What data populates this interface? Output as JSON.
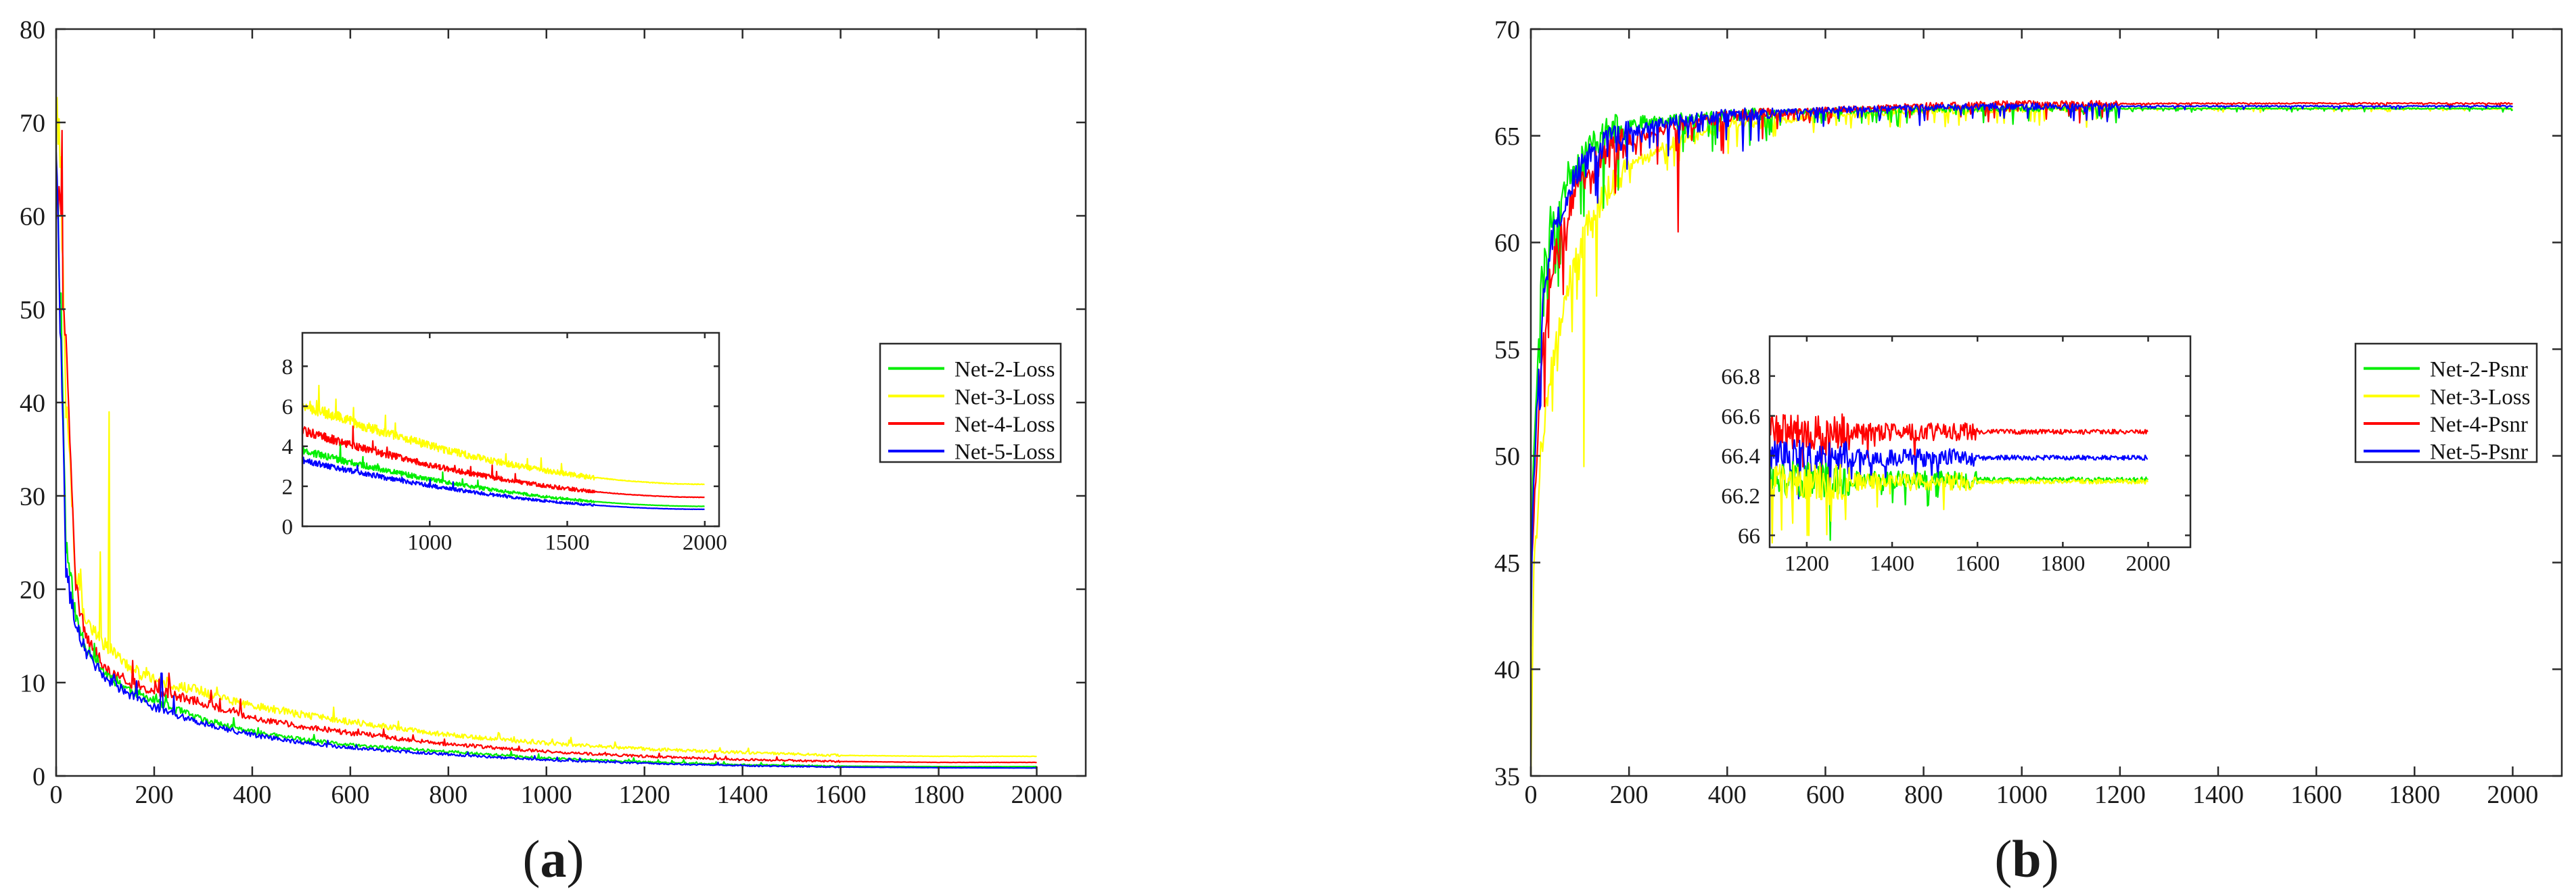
{
  "figure": {
    "panels": [
      {
        "id": "a",
        "caption_letter": "a"
      },
      {
        "id": "b",
        "caption_letter": "b"
      }
    ]
  },
  "colors": {
    "green": "#00ee00",
    "yellow": "#ffff00",
    "red": "#ff0000",
    "blue": "#0000ff",
    "axis": "#2b2b2b"
  },
  "chart_data": [
    {
      "panel": "a",
      "type": "line",
      "title": "",
      "xlabel": "",
      "ylabel": "",
      "xlim": [
        0,
        2100
      ],
      "ylim": [
        0,
        80
      ],
      "x_ticks": [
        0,
        200,
        400,
        600,
        800,
        1000,
        1200,
        1400,
        1600,
        1800,
        2000
      ],
      "y_ticks": [
        0,
        10,
        20,
        30,
        40,
        50,
        60,
        70,
        80
      ],
      "grid": false,
      "legend_position": "right-center",
      "series": [
        {
          "name": "Net-2-Loss",
          "color": "#00ee00",
          "x": [
            0,
            10,
            20,
            40,
            60,
            100,
            150,
            200,
            300,
            400,
            500,
            600,
            800,
            1000,
            1200,
            1400,
            1600,
            1800,
            2000
          ],
          "values": [
            66,
            50,
            25,
            17,
            14,
            11,
            9.2,
            8.0,
            6.0,
            4.7,
            3.9,
            3.3,
            2.6,
            1.9,
            1.5,
            1.2,
            1.05,
            1.0,
            1.0
          ]
        },
        {
          "name": "Net-3-Loss",
          "color": "#ffff00",
          "x": [
            0,
            10,
            20,
            40,
            60,
            100,
            150,
            200,
            300,
            400,
            500,
            600,
            800,
            1000,
            1200,
            1400,
            1600,
            1800,
            2000
          ],
          "values": [
            72,
            64,
            40,
            22,
            17,
            14,
            11.5,
            10.3,
            9.0,
            7.5,
            6.6,
            5.8,
            4.4,
            3.5,
            2.9,
            2.5,
            2.2,
            2.1,
            2.1
          ],
          "spikes": [
            {
              "x": 90,
              "y": 24
            },
            {
              "x": 108,
              "y": 39
            }
          ]
        },
        {
          "name": "Net-4-Loss",
          "color": "#ff0000",
          "x": [
            0,
            10,
            20,
            40,
            60,
            100,
            150,
            200,
            300,
            400,
            500,
            600,
            800,
            1000,
            1200,
            1400,
            1600,
            1800,
            2000
          ],
          "values": [
            67,
            58,
            45,
            20,
            15,
            11.5,
            10.0,
            9.2,
            7.8,
            6.3,
            5.3,
            4.6,
            3.4,
            2.6,
            2.1,
            1.75,
            1.55,
            1.45,
            1.45
          ]
        },
        {
          "name": "Net-5-Loss",
          "color": "#0000ff",
          "x": [
            0,
            10,
            20,
            40,
            60,
            100,
            150,
            200,
            300,
            400,
            500,
            600,
            800,
            1000,
            1200,
            1400,
            1600,
            1800,
            2000
          ],
          "values": [
            68,
            45,
            22,
            16,
            13.5,
            10.5,
            8.7,
            7.4,
            5.6,
            4.4,
            3.6,
            3.0,
            2.3,
            1.7,
            1.35,
            1.1,
            0.95,
            0.88,
            0.85
          ],
          "spikes": [
            {
              "x": 215,
              "y": 11
            }
          ]
        }
      ],
      "inset": {
        "xlim": [
          537,
          2052
        ],
        "ylim": [
          0,
          9.67
        ],
        "x_ticks": [
          1000,
          1500,
          2000
        ],
        "y_ticks": [
          0,
          2,
          4,
          6,
          8
        ],
        "start_values": {
          "Net-2-Loss": 3.8,
          "Net-3-Loss": 6.1,
          "Net-4-Loss": 4.8,
          "Net-5-Loss": 3.3
        },
        "end_values": {
          "Net-2-Loss": 1.0,
          "Net-3-Loss": 2.1,
          "Net-4-Loss": 1.45,
          "Net-5-Loss": 0.85
        }
      }
    },
    {
      "panel": "b",
      "type": "line",
      "title": "",
      "xlabel": "",
      "ylabel": "",
      "xlim": [
        0,
        2100
      ],
      "ylim": [
        35,
        70
      ],
      "x_ticks": [
        0,
        200,
        400,
        600,
        800,
        1000,
        1200,
        1400,
        1600,
        1800,
        2000
      ],
      "y_ticks": [
        35,
        40,
        45,
        50,
        55,
        60,
        65,
        70
      ],
      "grid": false,
      "legend_position": "right-center",
      "series": [
        {
          "name": "Net-2-Psnr",
          "color": "#00ee00",
          "x": [
            0,
            5,
            20,
            40,
            80,
            120,
            160,
            200,
            300,
            400,
            600,
            800,
            1000,
            1200,
            1400,
            1600,
            2000
          ],
          "values": [
            43,
            50,
            58,
            61,
            63.3,
            64.5,
            65.2,
            65.6,
            65.8,
            66.0,
            66.15,
            66.25,
            66.28,
            66.28,
            66.28,
            66.28,
            66.28
          ]
        },
        {
          "name": "Net-3-Loss",
          "color": "#ffff00",
          "x": [
            0,
            5,
            20,
            40,
            80,
            120,
            160,
            200,
            300,
            400,
            600,
            800,
            1000,
            1200,
            1400,
            1600,
            2000
          ],
          "values": [
            35,
            44,
            50,
            54,
            58.5,
            61.0,
            62.5,
            63.5,
            64.8,
            65.5,
            65.9,
            66.15,
            66.25,
            66.27,
            66.27,
            66.27,
            66.27
          ],
          "spikes": [
            {
              "x": 108,
              "y": 49.5
            }
          ]
        },
        {
          "name": "Net-4-Psnr",
          "color": "#ff0000",
          "x": [
            0,
            5,
            20,
            40,
            80,
            120,
            160,
            200,
            300,
            400,
            600,
            800,
            1000,
            1200,
            1400,
            1600,
            2000
          ],
          "values": [
            43,
            47,
            54,
            58.5,
            61.8,
            63.3,
            64.2,
            64.8,
            65.5,
            65.9,
            66.2,
            66.4,
            66.5,
            66.5,
            66.52,
            66.52,
            66.52
          ],
          "spikes": [
            {
              "x": 300,
              "y": 60.5
            }
          ]
        },
        {
          "name": "Net-5-Psnr",
          "color": "#0000ff",
          "x": [
            0,
            5,
            20,
            40,
            80,
            120,
            160,
            200,
            300,
            400,
            600,
            800,
            1000,
            1200,
            1400,
            1600,
            2000
          ],
          "values": [
            44,
            48,
            56,
            60,
            62.8,
            64.0,
            64.8,
            65.2,
            65.7,
            65.95,
            66.2,
            66.33,
            66.38,
            66.39,
            66.39,
            66.39,
            66.39
          ]
        }
      ],
      "inset": {
        "xlim": [
          1113,
          2099
        ],
        "ylim": [
          65.94,
          67.0
        ],
        "x_ticks": [
          1200,
          1400,
          1600,
          1800,
          2000
        ],
        "y_ticks": [
          66,
          66.2,
          66.4,
          66.6,
          66.8
        ],
        "y_tick_labels": [
          "66",
          "66.2",
          "66.4",
          "66.6",
          "66.8"
        ],
        "mean_values": {
          "Net-2-Psnr": 66.28,
          "Net-3-Loss": 66.27,
          "Net-4-Psnr": 66.52,
          "Net-5-Psnr": 66.39
        }
      }
    }
  ],
  "legend_a": {
    "items": [
      "Net-2-Loss",
      "Net-3-Loss",
      "Net-4-Loss",
      "Net-5-Loss"
    ]
  },
  "legend_b": {
    "items": [
      "Net-2-Psnr",
      "Net-3-Loss",
      "Net-4-Psnr",
      "Net-5-Psnr"
    ]
  }
}
